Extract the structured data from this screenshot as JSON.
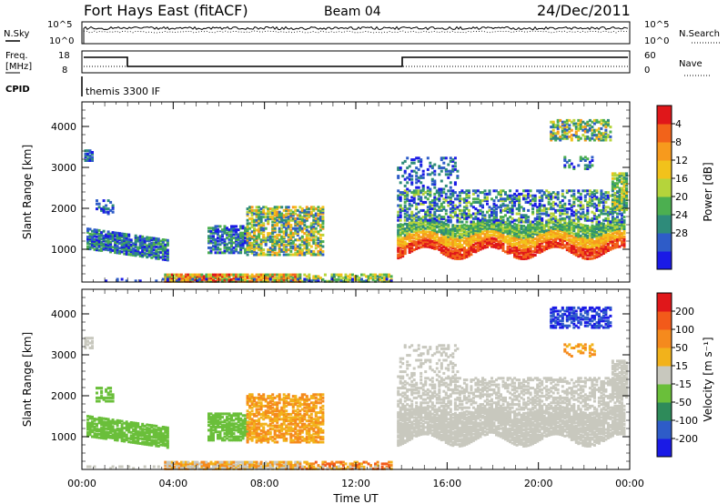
{
  "header": {
    "station": "Fort Hays East (fitACF)",
    "beam": "Beam 04",
    "date": "24/Dec/2011"
  },
  "top_panels": {
    "nsky_label": "N.Sky",
    "nsearch_label": "N.Search",
    "noise_ticks": [
      "10^5",
      "10^0"
    ],
    "freq_label": "Freq.",
    "freq_unit": "[MHz]",
    "freq_ticks": [
      "18",
      "8"
    ],
    "nave_label": "Nave",
    "nave_ticks": [
      "60",
      "0"
    ],
    "cpid_label": "CPID",
    "cpid_text": "themis 3300 IF"
  },
  "chart_data": [
    {
      "type": "heatmap",
      "panel": "power",
      "ylabel": "Slant Range [km]",
      "yticks": [
        1000,
        2000,
        3000,
        4000
      ],
      "ylim": [
        200,
        4600
      ],
      "xlim": [
        0,
        24
      ],
      "colorbar": {
        "label": "Power [dB]",
        "ticks": [
          "4",
          "8",
          "12",
          "16",
          "20",
          "24",
          "28"
        ],
        "colors": [
          "#1a1ae6",
          "#2e5cc8",
          "#2e8b7a",
          "#4caf50",
          "#b5d43b",
          "#f2c21b",
          "#f79a1d",
          "#f2631a",
          "#e0171a"
        ]
      }
    },
    {
      "type": "heatmap",
      "panel": "velocity",
      "ylabel": "Slant Range [km]",
      "yticks": [
        1000,
        2000,
        3000,
        4000
      ],
      "ylim": [
        200,
        4600
      ],
      "xlim": [
        0,
        24
      ],
      "xlabel": "Time UT",
      "xticks": [
        "00:00",
        "04:00",
        "08:00",
        "12:00",
        "16:00",
        "20:00",
        "00:00"
      ],
      "colorbar": {
        "label": "Velocity [m s⁻¹]",
        "ticks": [
          "200",
          "100",
          "50",
          "15",
          "-15",
          "-50",
          "-100",
          "-200"
        ],
        "colors": [
          "#1a1ae6",
          "#2e5cc8",
          "#2e8b5a",
          "#6abf3a",
          "#c8c8be",
          "#f2b21b",
          "#f58a1d",
          "#f25a1a",
          "#e0171a"
        ]
      }
    }
  ]
}
